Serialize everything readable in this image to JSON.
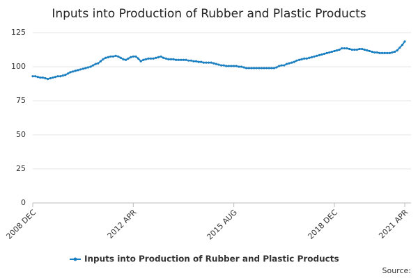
{
  "chart_data": {
    "type": "line",
    "title": "Inputs into Production of Rubber and Plastic Products",
    "source": "Source:",
    "categories": [
      "2008 DEC",
      null,
      null,
      null,
      null,
      null,
      null,
      null,
      null,
      null,
      null,
      null,
      null,
      null,
      null,
      null,
      null,
      null,
      null,
      null,
      null,
      null,
      null,
      null,
      null,
      null,
      null,
      null,
      null,
      null,
      null,
      null,
      null,
      null,
      null,
      null,
      null,
      null,
      null,
      null,
      "2012 APR",
      null,
      null,
      null,
      null,
      null,
      null,
      null,
      null,
      null,
      null,
      null,
      null,
      null,
      null,
      null,
      null,
      null,
      null,
      null,
      null,
      null,
      null,
      null,
      null,
      null,
      null,
      null,
      null,
      null,
      null,
      null,
      null,
      null,
      null,
      null,
      null,
      null,
      null,
      null,
      "2015 AUG",
      null,
      null,
      null,
      null,
      null,
      null,
      null,
      null,
      null,
      null,
      null,
      null,
      null,
      null,
      null,
      null,
      null,
      null,
      null,
      null,
      null,
      null,
      null,
      null,
      null,
      null,
      null,
      null,
      null,
      null,
      null,
      null,
      null,
      null,
      null,
      null,
      null,
      null,
      null,
      "2018 DEC",
      null,
      null,
      null,
      null,
      null,
      null,
      null,
      null,
      null,
      null,
      null,
      null,
      null,
      null,
      null,
      null,
      null,
      null,
      null,
      null,
      null,
      null,
      null,
      null,
      null,
      null,
      null,
      "2021 APR"
    ],
    "series": [
      {
        "name": "Inputs into Production of Rubber and Plastic Products",
        "color": "#1a7fc0",
        "values": [
          93,
          93,
          92.5,
          92,
          92,
          91.5,
          91,
          91.5,
          92,
          92.5,
          93,
          93,
          93.5,
          94,
          95,
          96,
          96.5,
          97,
          97.5,
          98,
          98.5,
          99,
          99.5,
          100,
          101,
          102,
          102.5,
          104,
          105.5,
          106.5,
          107,
          107.5,
          107.5,
          108,
          107.5,
          106.5,
          105.5,
          105,
          106,
          107,
          107.5,
          107.5,
          106,
          104,
          105,
          105.5,
          106,
          106,
          106,
          106.5,
          107,
          107.5,
          106.5,
          106,
          105.5,
          105.5,
          105.5,
          105,
          105,
          105,
          105,
          105,
          104.5,
          104.5,
          104,
          104,
          103.5,
          103.5,
          103,
          103,
          103,
          103,
          102.5,
          102,
          101.5,
          101,
          101,
          100.5,
          100.5,
          100.5,
          100.5,
          100.5,
          100,
          100,
          99.5,
          99,
          99,
          99,
          99,
          99,
          99,
          99,
          99,
          99,
          99,
          99,
          99,
          99.5,
          100.5,
          101,
          101,
          102,
          102.5,
          103,
          103.5,
          104.5,
          105,
          105.5,
          106,
          106,
          106.5,
          107,
          107.5,
          108,
          108.5,
          109,
          109.5,
          110,
          110.5,
          111,
          111.5,
          112,
          112.5,
          113.5,
          113.5,
          113.5,
          113,
          112.5,
          112.5,
          112.5,
          113,
          113,
          112.5,
          112,
          111.5,
          111,
          110.5,
          110.5,
          110,
          110,
          110,
          110,
          110,
          110.5,
          111,
          112,
          114,
          116,
          118.5
        ]
      }
    ],
    "ylim": [
      0,
      125
    ],
    "yticks": [
      0,
      25,
      50,
      75,
      100,
      125
    ],
    "grid": true,
    "legend": "bottom"
  }
}
